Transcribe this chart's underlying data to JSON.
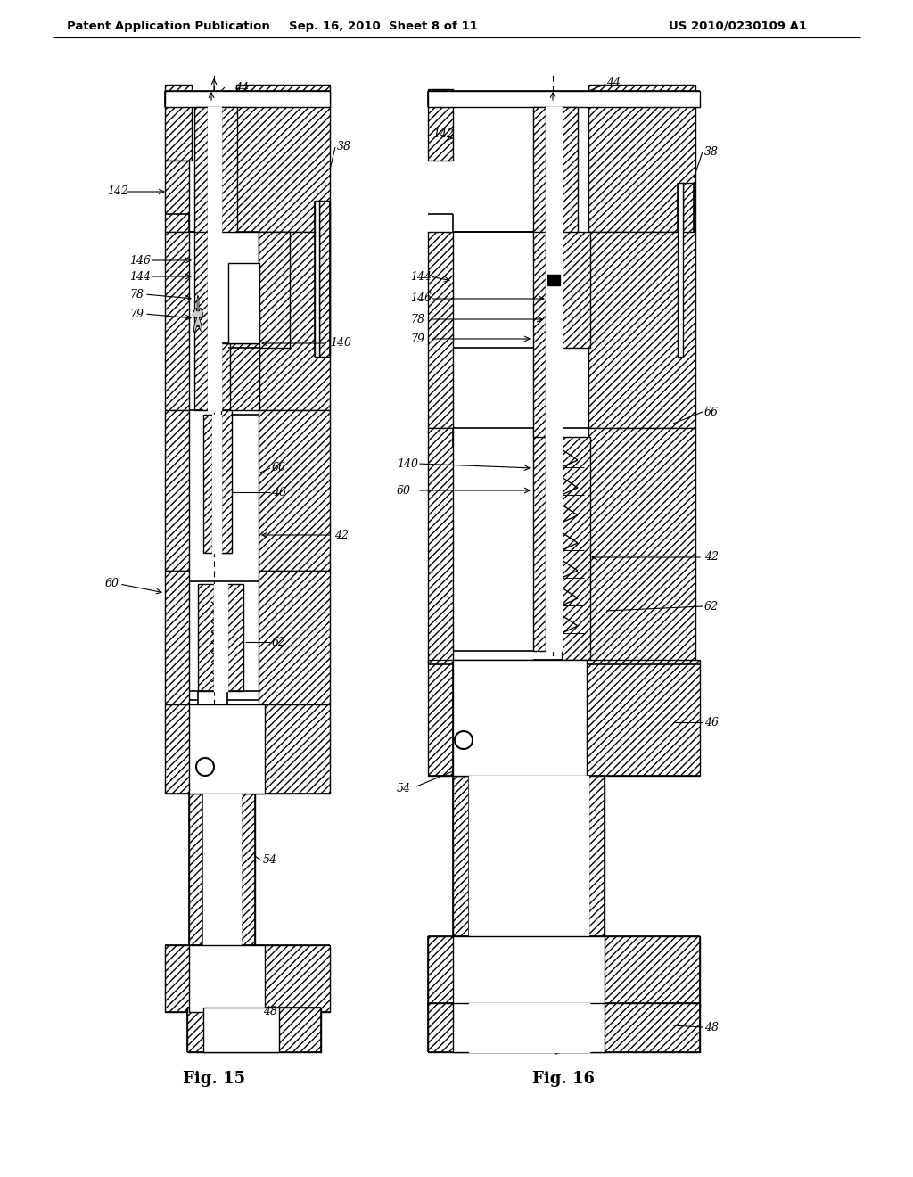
{
  "bg_color": "#ffffff",
  "header_left": "Patent Application Publication",
  "header_mid": "Sep. 16, 2010  Sheet 8 of 11",
  "header_right": "US 2010/0230109 A1",
  "fig15_label": "Fig. 15",
  "fig16_label": "Fig. 16",
  "line_color": "#000000",
  "line_width": 1.2,
  "thick_line": 2.0,
  "hatch_density": "////"
}
